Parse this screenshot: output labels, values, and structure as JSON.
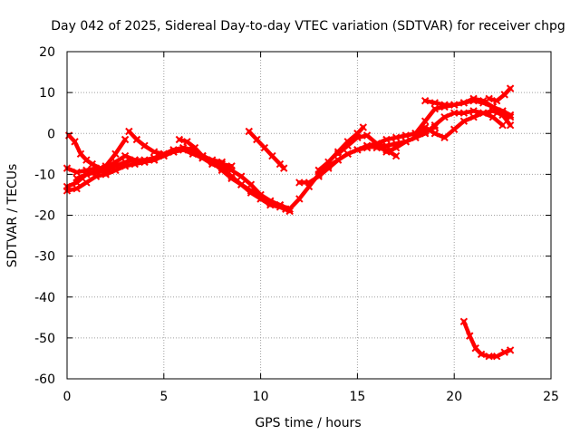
{
  "chart_data": {
    "type": "scatter",
    "title": "Day 042 of 2025, Sidereal Day-to-day VTEC variation (SDTVAR) for receiver chpg",
    "xlabel": "GPS time / hours",
    "ylabel": "SDTVAR / TECUs",
    "xlim": [
      0,
      25
    ],
    "ylim": [
      -60,
      20
    ],
    "xticks": [
      0,
      5,
      10,
      15,
      20,
      25
    ],
    "yticks": [
      20,
      10,
      0,
      -10,
      -20,
      -30,
      -40,
      -50,
      -60
    ],
    "grid": true,
    "legend": "none",
    "marker_color": "#ff0000",
    "series": [
      {
        "name": "arc-1",
        "x": [
          0.1,
          0.4,
          0.7,
          1.0,
          1.3,
          1.7,
          2.0
        ],
        "y": [
          -0.5,
          -2,
          -5,
          -6.5,
          -7.5,
          -8.5,
          -9.5
        ]
      },
      {
        "name": "arc-2",
        "x": [
          0.0,
          0.5,
          1.0,
          1.5,
          2.0,
          2.5,
          3.0,
          3.5,
          4.0,
          4.5,
          5.0,
          5.5,
          6.0,
          6.5,
          7.0,
          7.5,
          8.0,
          8.5,
          9.0,
          9.5,
          10.0,
          10.5,
          11.0,
          11.3
        ],
        "y": [
          -8.5,
          -9.5,
          -9,
          -8.5,
          -8.5,
          -7,
          -5.5,
          -6.5,
          -7,
          -6.5,
          -5,
          -4,
          -3.5,
          -4,
          -5.5,
          -7,
          -8,
          -9,
          -10.5,
          -12.5,
          -15,
          -16.5,
          -17.5,
          -18.5
        ]
      },
      {
        "name": "arc-3",
        "x": [
          0.0,
          0.5,
          1.0,
          1.5,
          2.0,
          2.5,
          3.0,
          3.5,
          4.0,
          4.5,
          5.0,
          5.5,
          6.0,
          6.5,
          7.0,
          7.5,
          8.0,
          8.5
        ],
        "y": [
          -13,
          -12,
          -10,
          -9.5,
          -9,
          -8,
          -7,
          -6.5,
          -6.5,
          -6,
          -5,
          -4.5,
          -4,
          -4.5,
          -6,
          -7,
          -7.5,
          -8
        ]
      },
      {
        "name": "arc-4",
        "x": [
          0.0,
          0.5,
          1.0,
          1.5,
          2.0,
          2.5,
          3.0,
          3.5,
          4.0,
          4.5,
          5.0,
          5.5,
          6.0,
          6.5,
          7.0
        ],
        "y": [
          -14,
          -13.5,
          -12,
          -10.5,
          -10,
          -9,
          -8,
          -7.5,
          -7,
          -6.5,
          -5.5,
          -4.5,
          -4,
          -5,
          -6
        ]
      },
      {
        "name": "arc-5",
        "x": [
          0.5,
          1.0,
          1.5,
          2.0,
          2.5,
          3.0
        ],
        "y": [
          -11,
          -10,
          -9.5,
          -8,
          -5,
          -1.5
        ]
      },
      {
        "name": "arc-6",
        "x": [
          3.2,
          3.6,
          4.0,
          4.5,
          5.0,
          5.5,
          6.0,
          6.5,
          7.0,
          7.5,
          8.0,
          8.5,
          9.0,
          9.5,
          10.0,
          10.5,
          11.0,
          11.5
        ],
        "y": [
          0.5,
          -1.5,
          -3,
          -4.5,
          -5,
          -4.5,
          -4,
          -4.5,
          -6,
          -7.5,
          -8.5,
          -10.5,
          -12.5,
          -14.5,
          -16,
          -17,
          -17.5,
          -18.5
        ]
      },
      {
        "name": "arc-7",
        "x": [
          5.8,
          6.2,
          6.6,
          7.0,
          7.5,
          8.0
        ],
        "y": [
          -1.5,
          -2,
          -3.5,
          -5.5,
          -6.5,
          -7
        ]
      },
      {
        "name": "arc-8",
        "x": [
          7.0,
          7.5,
          8.0,
          8.5,
          9.0,
          9.5,
          10.0,
          10.5,
          11.0,
          11.5
        ],
        "y": [
          -5.5,
          -7,
          -9,
          -11,
          -12.5,
          -14,
          -16,
          -17.5,
          -18,
          -19
        ]
      },
      {
        "name": "arc-9",
        "x": [
          9.4,
          9.8,
          10.2,
          10.6,
          11.0,
          11.2
        ],
        "y": [
          0.5,
          -1.5,
          -3.5,
          -5.5,
          -7.5,
          -8.5
        ]
      },
      {
        "name": "arc-10",
        "x": [
          11.5,
          12.0,
          12.5,
          13.0,
          13.5,
          14.0,
          14.5,
          15.0,
          15.5,
          16.0,
          16.5,
          17.0,
          17.5,
          18.0,
          18.5,
          19.0,
          19.5,
          20.0,
          20.5,
          21.0,
          21.5,
          22.0,
          22.5
        ],
        "y": [
          -18.5,
          -16,
          -13,
          -10,
          -8,
          -6.5,
          -5,
          -4,
          -3.5,
          -3,
          -3,
          -2.5,
          -2,
          -1,
          0,
          2,
          4,
          5,
          5,
          5.5,
          5,
          4,
          2
        ]
      },
      {
        "name": "arc-11",
        "x": [
          12.0,
          12.5,
          13.0,
          13.5,
          14.0,
          14.5,
          15.0,
          15.5,
          16.0,
          16.5,
          17.0
        ],
        "y": [
          -12,
          -12,
          -10.5,
          -8.5,
          -6.5,
          -5,
          -4,
          -3,
          -3.5,
          -4,
          -5.5
        ]
      },
      {
        "name": "arc-12",
        "x": [
          13.0,
          13.5,
          14.0,
          14.5,
          15.0,
          15.3
        ],
        "y": [
          -9,
          -7,
          -4.5,
          -2,
          0,
          1.5
        ]
      },
      {
        "name": "arc-13",
        "x": [
          14.0,
          14.5,
          15.0,
          15.5,
          16.0,
          16.5,
          17.0,
          17.5,
          18.0,
          18.5,
          19.0
        ],
        "y": [
          -5,
          -3,
          -1,
          -0.5,
          -2.5,
          -4.5,
          -3.5,
          -2,
          -1,
          0.5,
          1.5
        ]
      },
      {
        "name": "arc-14",
        "x": [
          15.5,
          16.0,
          16.5,
          17.0,
          17.5,
          18.0,
          18.5,
          19.0,
          19.5,
          20.0,
          20.5,
          21.0,
          21.5,
          22.0,
          22.5,
          22.9
        ],
        "y": [
          -3,
          -2.5,
          -1.5,
          -1,
          -0.5,
          0,
          3,
          6,
          6.5,
          7,
          7.5,
          8,
          7.5,
          6.5,
          5.5,
          4.5
        ]
      },
      {
        "name": "arc-15",
        "x": [
          18.5,
          19.0,
          19.5,
          20.0,
          20.5,
          21.0,
          21.5,
          22.0,
          22.5,
          22.9
        ],
        "y": [
          8,
          7.5,
          7,
          7,
          7.5,
          8.5,
          8,
          6.5,
          5,
          4
        ]
      },
      {
        "name": "arc-16",
        "x": [
          18.0,
          18.5,
          19.0,
          19.5,
          20.0,
          20.5,
          21.0,
          21.5,
          22.0,
          22.5,
          22.9
        ],
        "y": [
          0,
          1.5,
          0,
          -1,
          1,
          3,
          4,
          5,
          5.5,
          4.5,
          2
        ]
      },
      {
        "name": "arc-17",
        "x": [
          21.8,
          22.2,
          22.6,
          22.9
        ],
        "y": [
          8.5,
          8,
          9.5,
          11
        ]
      },
      {
        "name": "arc-18",
        "x": [
          20.5,
          20.8,
          21.1,
          21.4,
          21.8,
          22.2,
          22.6,
          22.9
        ],
        "y": [
          -46,
          -49.5,
          -52.5,
          -54,
          -54.5,
          -54.5,
          -53.5,
          -53
        ]
      }
    ]
  }
}
